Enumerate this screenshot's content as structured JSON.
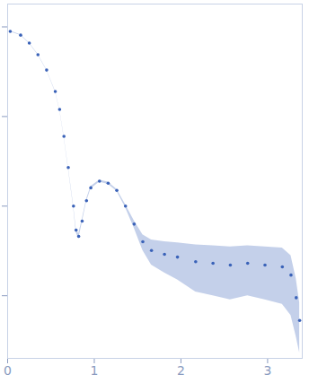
{
  "chart_data": {
    "type": "scatter",
    "x": [
      0.03,
      0.15,
      0.25,
      0.35,
      0.45,
      0.55,
      0.6,
      0.65,
      0.7,
      0.76,
      0.79,
      0.82,
      0.86,
      0.91,
      0.96,
      1.06,
      1.16,
      1.26,
      1.36,
      1.46,
      1.56,
      1.66,
      1.81,
      1.96,
      2.17,
      2.37,
      2.57,
      2.77,
      2.97,
      3.17,
      3.27,
      3.33,
      3.37
    ],
    "values": [
      0.89,
      0.81,
      0.66,
      0.49,
      0.33,
      0.19,
      0.12,
      0.06,
      0.027,
      0.01,
      0.0054,
      0.0046,
      0.0068,
      0.0115,
      0.016,
      0.019,
      0.018,
      0.015,
      0.01,
      0.0063,
      0.004,
      0.0032,
      0.0029,
      0.0027,
      0.0024,
      0.0023,
      0.0022,
      0.0023,
      0.0022,
      0.0021,
      0.0017,
      0.00095,
      0.00053
    ],
    "errors": [
      0.01,
      0.008,
      0.006,
      0.004,
      0.003,
      0.002,
      0.0015,
      0.001,
      0.0006,
      0.0003,
      0.0003,
      0.0003,
      0.0003,
      0.0004,
      0.0005,
      0.0005,
      0.0005,
      0.0004,
      0.0004,
      0.0006,
      0.0008,
      0.001,
      0.0011,
      0.0012,
      0.0013,
      0.0013,
      0.0013,
      0.0013,
      0.0013,
      0.0013,
      0.0011,
      0.0006,
      0.0003
    ],
    "color": "#3a62b8",
    "xlim": [
      0,
      3.4
    ],
    "xticks": [
      0,
      1,
      2,
      3
    ],
    "ylim": [
      0.0002,
      1.8
    ],
    "yticks": [
      0.001,
      0.01,
      0.1,
      1
    ],
    "log": "y",
    "grid": false,
    "tick_labels": "x"
  }
}
